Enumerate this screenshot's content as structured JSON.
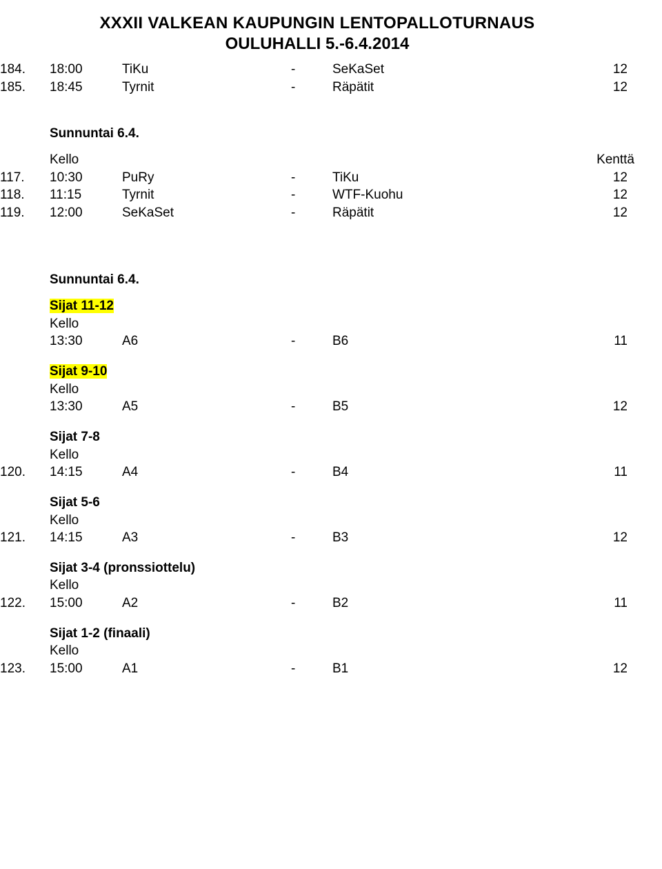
{
  "header": {
    "title": "XXXII VALKEAN KAUPUNGIN LENTOPALLOTURNAUS",
    "subtitle": "OULUHALLI 5.-6.4.2014"
  },
  "rows_top": [
    {
      "num": "184.",
      "time": "18:00",
      "teamA": "TiKu",
      "dash": "-",
      "teamB": "SeKaSet",
      "field": "12"
    },
    {
      "num": "185.",
      "time": "18:45",
      "teamA": "Tyrnit",
      "dash": "-",
      "teamB": "Räpätit",
      "field": "12"
    }
  ],
  "section1": {
    "heading": "Sunnuntai 6.4.",
    "label_left": "Kello",
    "label_right": "Kenttä",
    "rows": [
      {
        "num": "117.",
        "time": "10:30",
        "teamA": "PuRy",
        "dash": "-",
        "teamB": "TiKu",
        "field": "12"
      },
      {
        "num": "118.",
        "time": "11:15",
        "teamA": "Tyrnit",
        "dash": "-",
        "teamB": "WTF-Kuohu",
        "field": "12"
      },
      {
        "num": "119.",
        "time": "12:00",
        "teamA": "SeKaSet",
        "dash": "-",
        "teamB": "Räpätit",
        "field": "12"
      }
    ]
  },
  "section2": {
    "heading": "Sunnuntai 6.4.",
    "groups": [
      {
        "title": "Sijat 11-12",
        "title_hl": true,
        "label": "Kello",
        "rows": [
          {
            "num": "",
            "time": "13:30",
            "teamA": "A6",
            "dash": "-",
            "teamB": "B6",
            "field": "11"
          }
        ]
      },
      {
        "title": "Sijat 9-10",
        "title_hl": true,
        "label": "Kello",
        "rows": [
          {
            "num": "",
            "time": "13:30",
            "teamA": "A5",
            "dash": "-",
            "teamB": "B5",
            "field": "12"
          }
        ]
      },
      {
        "title": "Sijat 7-8",
        "title_hl": false,
        "label": "Kello",
        "rows": [
          {
            "num": "120.",
            "time": "14:15",
            "teamA": "A4",
            "dash": "-",
            "teamB": "B4",
            "field": "11"
          }
        ]
      },
      {
        "title": "Sijat 5-6",
        "title_hl": false,
        "label": "Kello",
        "rows": [
          {
            "num": "121.",
            "time": "14:15",
            "teamA": "A3",
            "dash": "-",
            "teamB": "B3",
            "field": "12"
          }
        ]
      },
      {
        "title": "Sijat 3-4 (pronssiottelu)",
        "title_hl": false,
        "label": "Kello",
        "rows": [
          {
            "num": "122.",
            "time": "15:00",
            "teamA": "A2",
            "dash": "-",
            "teamB": "B2",
            "field": "11"
          }
        ]
      },
      {
        "title": "Sijat 1-2 (finaali)",
        "title_hl": false,
        "label": "Kello",
        "rows": [
          {
            "num": "123.",
            "time": "15:00",
            "teamA": "A1",
            "dash": "-",
            "teamB": "B1",
            "field": "12"
          }
        ]
      }
    ]
  }
}
